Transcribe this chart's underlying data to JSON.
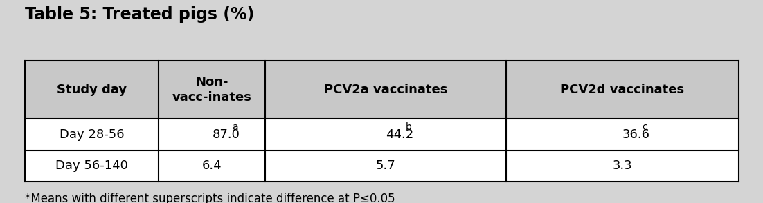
{
  "title": "Table 5: Treated pigs (%)",
  "title_fontsize": 17,
  "title_fontweight": "bold",
  "background_color": "#d4d4d4",
  "table_bg_color": "#ffffff",
  "header_bg_color": "#c8c8c8",
  "border_color": "#000000",
  "col_headers": [
    "Study day",
    "Non-\nvacc­inates",
    "PCV2a vaccinates",
    "PCV2d vaccinates"
  ],
  "rows": [
    [
      "Day 28-56",
      "87.0",
      "a",
      "44.2",
      "b",
      "36.6",
      "c"
    ],
    [
      "Day 56-140",
      "6.4",
      "",
      "5.7",
      "",
      "3.3",
      ""
    ]
  ],
  "footnote": "*Means with different superscripts indicate difference at P≤0.05",
  "footnote_fontsize": 12,
  "header_fontsize": 13,
  "cell_fontsize": 13,
  "figsize": [
    11.02,
    2.94
  ],
  "dpi": 100
}
